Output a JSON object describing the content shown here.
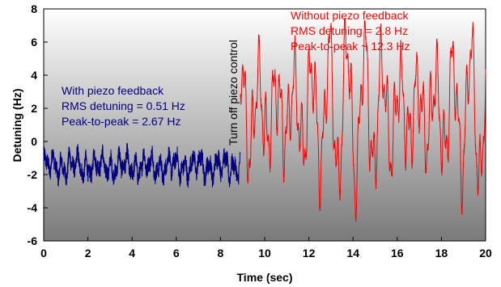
{
  "chart_data": {
    "type": "line",
    "title": "",
    "xlabel": "Time (sec)",
    "ylabel": "Detuning (Hz)",
    "xlim": [
      0,
      20
    ],
    "ylim": [
      -6,
      8
    ],
    "x_ticks": [
      "0",
      "2",
      "4",
      "6",
      "8",
      "10",
      "12",
      "14",
      "16",
      "18",
      "20"
    ],
    "y_ticks": [
      "-6",
      "-4",
      "-2",
      "0",
      "2",
      "4",
      "6",
      "8"
    ],
    "grid": false,
    "background": "vertical gradient, white at top to dark gray at bottom",
    "series": [
      {
        "name": "With piezo feedback",
        "color": "#000080",
        "x_range": [
          0,
          8.9
        ],
        "mean": -1.45,
        "rms": 0.51,
        "peak_to_peak": 2.67
      },
      {
        "name": "Without piezo feedback",
        "color": "#ff0000",
        "x_range": [
          8.9,
          20
        ],
        "mean": 1.3,
        "rms": 2.8,
        "peak_to_peak": 12.3
      }
    ],
    "annotations": {
      "with_feedback": [
        "With piezo feedback",
        "RMS detuning = 0.51 Hz",
        "Peak-to-peak = 2.67 Hz"
      ],
      "without_feedback": [
        "Without piezo feedback",
        "RMS detuning = 2.8 Hz",
        "Peak-to-peak ~ 12.3 Hz"
      ],
      "transition": "Turn off piezo control",
      "transition_x": 8.9
    }
  }
}
